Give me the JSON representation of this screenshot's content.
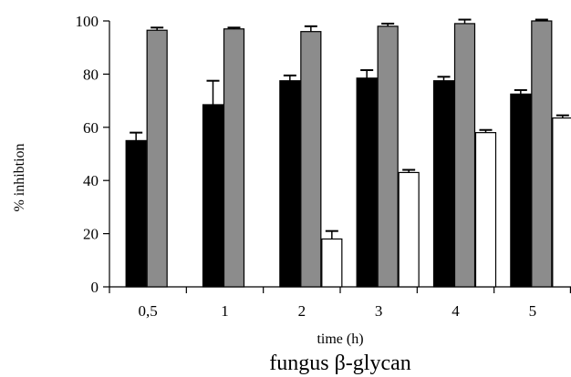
{
  "chart_data": {
    "type": "bar",
    "xlabel": "time (h)",
    "ylabel": "% inhibtion",
    "caption": "fungus β-glycan",
    "categories": [
      "0,5",
      "1",
      "2",
      "3",
      "4",
      "5"
    ],
    "ylim": [
      0,
      100
    ],
    "yticks": [
      0,
      20,
      40,
      60,
      80,
      100
    ],
    "grid": false,
    "error_bars": "upper",
    "series": [
      {
        "color": "#000000",
        "values": [
          55,
          68.5,
          77.5,
          78.5,
          77.5,
          72.5
        ],
        "errors": [
          3,
          9,
          2,
          3,
          1.5,
          1.5
        ]
      },
      {
        "color": "#8c8c8c",
        "values": [
          96.5,
          97,
          96,
          98,
          99,
          100
        ],
        "errors": [
          1,
          0.5,
          2,
          1,
          1.5,
          0.5
        ]
      },
      {
        "color": "#ffffff",
        "values": [
          null,
          null,
          18,
          43,
          58,
          63.5
        ],
        "errors": [
          null,
          null,
          3,
          1,
          1,
          1
        ]
      }
    ]
  }
}
